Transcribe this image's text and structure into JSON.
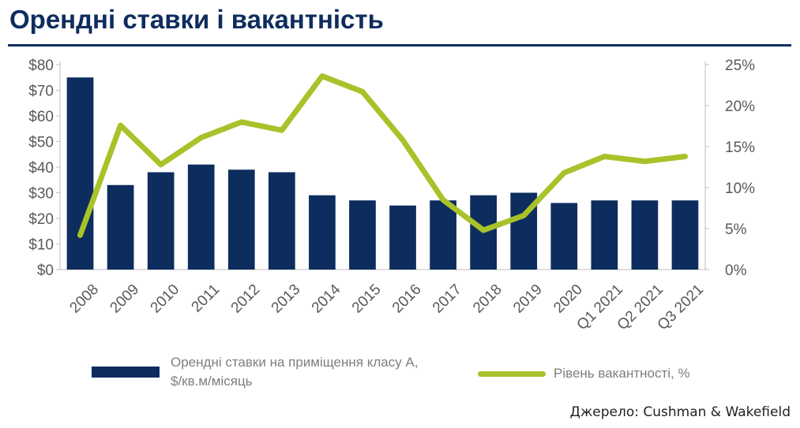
{
  "title": "Орендні ставки і вакантність",
  "source": "Джерело: Cushman & Wakefield",
  "colors": {
    "bars": "#0d2d5e",
    "line": "#a8c22a",
    "title": "#0d2d5e",
    "text": "#595959"
  },
  "chart_data": {
    "type": "bar",
    "categories": [
      "2008",
      "2009",
      "2010",
      "2011",
      "2012",
      "2013",
      "2014",
      "2015",
      "2016",
      "2017",
      "2018",
      "2019",
      "2020",
      "Q1 2021",
      "Q2 2021",
      "Q3 2021"
    ],
    "series": [
      {
        "name": "Орендні ставки на приміщення класу А, $/кв.м/місяць",
        "type": "bar",
        "axis": "left",
        "values": [
          75,
          33,
          38,
          41,
          39,
          38,
          29,
          27,
          25,
          27,
          29,
          30,
          26,
          27,
          27,
          27
        ]
      },
      {
        "name": "Рівень вакантності, %",
        "type": "line",
        "axis": "right",
        "values": [
          4.2,
          17.6,
          12.8,
          16.1,
          18.0,
          17.0,
          23.6,
          21.7,
          15.8,
          8.5,
          4.8,
          6.6,
          11.8,
          13.8,
          13.2,
          13.8
        ]
      }
    ],
    "y_left": {
      "ylim": [
        0,
        80
      ],
      "ticks": [
        "$0",
        "$10",
        "$20",
        "$30",
        "$40",
        "$50",
        "$60",
        "$70",
        "$80"
      ]
    },
    "y_right": {
      "ylim": [
        0,
        25
      ],
      "ticks": [
        "0%",
        "5%",
        "10%",
        "15%",
        "20%",
        "25%"
      ]
    },
    "grid": false,
    "legend_position": "bottom"
  }
}
